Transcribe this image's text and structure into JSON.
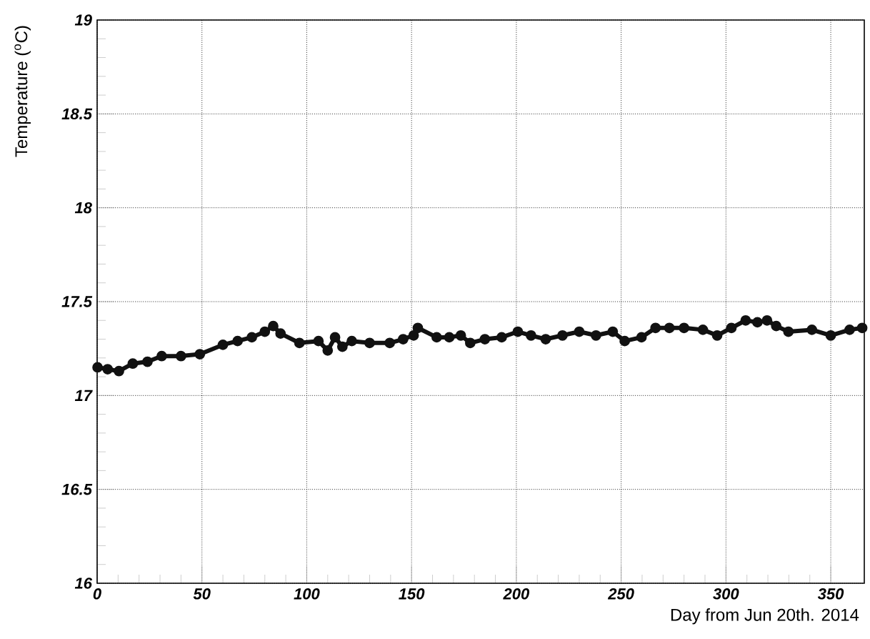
{
  "chart_data": {
    "type": "line",
    "xlabel": "Day from Jun 20th. 2014",
    "ylabel": "Temperature ($^{o}$C)",
    "xlim": [
      0,
      366
    ],
    "ylim": [
      16,
      19
    ],
    "xticks": [
      0,
      50,
      100,
      150,
      200,
      250,
      300,
      350
    ],
    "yticks": [
      16,
      16.5,
      17,
      17.5,
      18,
      18.5,
      19
    ],
    "grid": true,
    "marker": "circle",
    "color": "#111111",
    "x": [
      0.2,
      5,
      10.4,
      17,
      24,
      30.8,
      40,
      49,
      60,
      67,
      73.8,
      80,
      84,
      87.5,
      96.5,
      105.6,
      110,
      113.5,
      117,
      121.5,
      130,
      139.6,
      146,
      151,
      153,
      162,
      168,
      173.5,
      178,
      185,
      193,
      200.7,
      207,
      214,
      222,
      230,
      238,
      246,
      251.7,
      259.7,
      266.4,
      273,
      280,
      289,
      295.8,
      302.6,
      309.4,
      315,
      319.6,
      324,
      329.8,
      341,
      350,
      359,
      365
    ],
    "values": [
      17.15,
      17.14,
      17.13,
      17.17,
      17.18,
      17.21,
      17.21,
      17.22,
      17.27,
      17.29,
      17.31,
      17.34,
      17.37,
      17.33,
      17.28,
      17.29,
      17.24,
      17.31,
      17.26,
      17.29,
      17.28,
      17.28,
      17.3,
      17.32,
      17.36,
      17.31,
      17.31,
      17.32,
      17.28,
      17.3,
      17.31,
      17.34,
      17.32,
      17.3,
      17.32,
      17.34,
      17.32,
      17.34,
      17.29,
      17.31,
      17.36,
      17.36,
      17.36,
      17.35,
      17.32,
      17.36,
      17.4,
      17.39,
      17.4,
      17.37,
      17.34,
      17.35,
      17.32,
      17.35,
      17.36
    ]
  }
}
